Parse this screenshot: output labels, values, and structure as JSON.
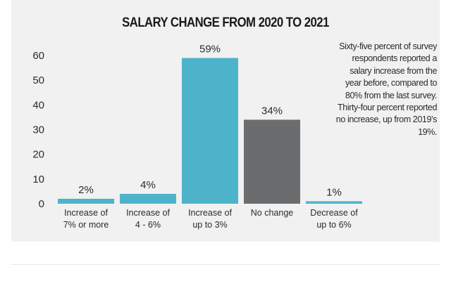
{
  "chart_data": {
    "type": "bar",
    "title": "SALARY CHANGE FROM 2020 TO 2021",
    "categories": [
      [
        "Increase of",
        "7% or more"
      ],
      [
        "Increase of",
        "4 - 6%"
      ],
      [
        "Increase of",
        "up to 3%"
      ],
      [
        "No change"
      ],
      [
        "Decrease of",
        "up to 6%"
      ]
    ],
    "values": [
      2,
      4,
      59,
      34,
      1
    ],
    "data_labels": [
      "2%",
      "4%",
      "59%",
      "34%",
      "1%"
    ],
    "bar_colors": [
      "#4db3cb",
      "#4db3cb",
      "#4db3cb",
      "#6b6c6e",
      "#4db3cb"
    ],
    "yticks": [
      "0",
      "10",
      "20",
      "30",
      "40",
      "50",
      "60"
    ],
    "ylim": [
      0,
      60
    ],
    "grid": false,
    "legend": "none",
    "caption": "Sixty-five percent of survey respondents reported a salary increase from the year before, compared to 80% from the last survey. Thirty-four percent reported no increase, up from 2019’s 19%."
  }
}
